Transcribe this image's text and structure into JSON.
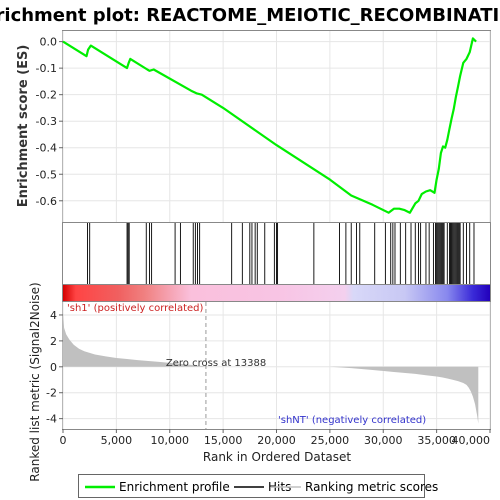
{
  "chart_data": {
    "type": "line",
    "title": "Enrichment plot: REACTOME_MEIOTIC_RECOMBINATION",
    "xlabel": "Rank in Ordered Dataset",
    "ylabel_top": "Enrichment score (ES)",
    "ylabel_bottom": "Ranked list metric (Signal2Noise)",
    "xlim": [
      0,
      40000
    ],
    "x_ticks": [
      0,
      5000,
      10000,
      15000,
      20000,
      25000,
      30000,
      35000,
      40000
    ],
    "x_tick_labels": [
      "0",
      "5,000",
      "10,000",
      "15,000",
      "20,000",
      "25,000",
      "30,000",
      "35,000",
      "40,000"
    ],
    "es_ylim": [
      -0.68,
      0.04
    ],
    "es_ticks": [
      0.0,
      -0.1,
      -0.2,
      -0.3,
      -0.4,
      -0.5,
      -0.6
    ],
    "es_tick_labels": [
      "0.0",
      "-0.1",
      "-0.2",
      "-0.3",
      "-0.4",
      "-0.5",
      "-0.6"
    ],
    "metric_ylim": [
      -4.8,
      5.0
    ],
    "metric_ticks": [
      4,
      2,
      0,
      -2,
      -4
    ],
    "metric_tick_labels": [
      "4",
      "2",
      "0",
      "-2",
      "-4"
    ],
    "series": [
      {
        "name": "Enrichment profile",
        "color": "#00ee00",
        "x": [
          0,
          2200,
          2350,
          2600,
          6000,
          6150,
          6300,
          7900,
          8100,
          8500,
          12000,
          12500,
          13000,
          15000,
          20000,
          25000,
          27000,
          29000,
          30500,
          31000,
          31500,
          32000,
          32500,
          33000,
          33300,
          33600,
          34000,
          34400,
          34800,
          35000,
          35200,
          35400,
          35600,
          35800,
          36000,
          36200,
          36400,
          36600,
          36800,
          37000,
          37200,
          37500,
          37800,
          38100,
          38400,
          38700
        ],
        "y": [
          0.0,
          -0.055,
          -0.03,
          -0.015,
          -0.1,
          -0.08,
          -0.065,
          -0.105,
          -0.11,
          -0.105,
          -0.185,
          -0.195,
          -0.2,
          -0.25,
          -0.39,
          -0.52,
          -0.58,
          -0.615,
          -0.645,
          -0.63,
          -0.63,
          -0.635,
          -0.645,
          -0.61,
          -0.6,
          -0.575,
          -0.565,
          -0.56,
          -0.57,
          -0.52,
          -0.48,
          -0.42,
          -0.395,
          -0.4,
          -0.37,
          -0.33,
          -0.29,
          -0.255,
          -0.21,
          -0.17,
          -0.13,
          -0.08,
          -0.065,
          -0.04,
          0.012,
          0.0
        ]
      },
      {
        "name": "Hits",
        "color": "#000000",
        "positions": [
          2300,
          2500,
          6000,
          6100,
          6200,
          7800,
          8100,
          8300,
          10500,
          11000,
          12200,
          12400,
          12600,
          12800,
          15800,
          16800,
          17500,
          17700,
          18000,
          18200,
          18900,
          19800,
          20000,
          20100,
          23500,
          25900,
          26500,
          27000,
          27500,
          27800,
          29200,
          30200,
          30700,
          30900,
          31100,
          31600,
          32100,
          32600,
          33000,
          33300,
          33500,
          34000,
          34300,
          34700,
          34900,
          35000,
          35100,
          35200,
          35300,
          35400,
          35500,
          35600,
          35700,
          36000,
          36200,
          36300,
          36400,
          36500,
          36600,
          36700,
          36800,
          36900,
          37000,
          37100,
          37200,
          37500,
          37800,
          38100,
          38500
        ]
      },
      {
        "name": "Ranking metric scores",
        "color": "#c0c0c0",
        "x": [
          0,
          100,
          300,
          600,
          1000,
          1500,
          2000,
          3000,
          4000,
          5000,
          6000,
          7000,
          8000,
          9000,
          10000,
          11000,
          12000,
          13000,
          13388,
          14000,
          18000,
          22000,
          25000,
          27000,
          29000,
          31000,
          33000,
          34000,
          35000,
          35500,
          36000,
          36500,
          37000,
          37500,
          37800,
          38000,
          38200,
          38400,
          38600,
          38800,
          38900
        ],
        "y": [
          4.2,
          3.0,
          2.5,
          2.1,
          1.7,
          1.4,
          1.2,
          0.95,
          0.8,
          0.68,
          0.6,
          0.52,
          0.45,
          0.38,
          0.3,
          0.22,
          0.15,
          0.06,
          0.0,
          0.0,
          0.0,
          0.0,
          0.0,
          -0.1,
          -0.25,
          -0.4,
          -0.55,
          -0.65,
          -0.75,
          -0.82,
          -0.9,
          -1.0,
          -1.1,
          -1.25,
          -1.4,
          -1.6,
          -1.9,
          -2.3,
          -2.9,
          -3.8,
          -4.4
        ]
      }
    ],
    "annotations": {
      "zero_cross": "Zero cross at 13388",
      "zero_cross_x": 13388,
      "positive_label": "'sh1' (positively correlated)",
      "negative_label": "'shNT' (negatively correlated)"
    },
    "legend": {
      "placement": "bottom",
      "entries": [
        "Enrichment profile",
        "Hits",
        "Ranking metric scores"
      ]
    }
  }
}
